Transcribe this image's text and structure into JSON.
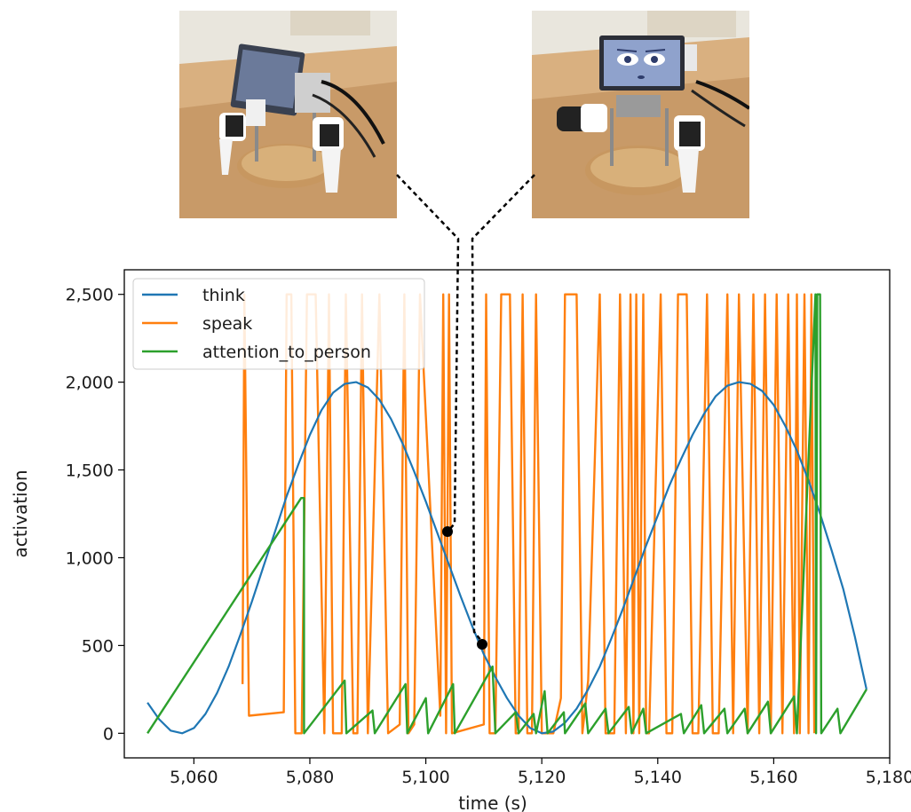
{
  "images": [
    {
      "name": "robot-photo-thinking",
      "screen_face": "dim"
    },
    {
      "name": "robot-photo-speaking",
      "screen_face": "bright"
    }
  ],
  "chart_data": {
    "type": "line",
    "xlabel": "time (s)",
    "ylabel": "activation",
    "xlim": [
      5048,
      5180
    ],
    "ylim": [
      -140,
      2640
    ],
    "xticks": [
      5060,
      5080,
      5100,
      5120,
      5140,
      5160,
      5180
    ],
    "xtick_labels": [
      "5,060",
      "5,080",
      "5,100",
      "5,120",
      "5,140",
      "5,160",
      "5,180"
    ],
    "yticks": [
      0,
      500,
      1000,
      1500,
      2000,
      2500
    ],
    "ytick_labels": [
      "0",
      "500",
      "1,000",
      "1,500",
      "2,000",
      "2,500"
    ],
    "grid": false,
    "legend": "top-left",
    "series": [
      {
        "name": "think",
        "color": "#1f77b4",
        "x": [
          5052,
          5054,
          5056,
          5058,
          5060,
          5062,
          5064,
          5066,
          5068,
          5070,
          5072,
          5074,
          5076,
          5078,
          5080,
          5082,
          5084,
          5086,
          5088,
          5090,
          5092,
          5094,
          5096,
          5098,
          5100,
          5102,
          5104,
          5106,
          5108,
          5110,
          5112,
          5114,
          5116,
          5118,
          5120,
          5122,
          5124,
          5126,
          5128,
          5130,
          5132,
          5134,
          5136,
          5138,
          5140,
          5142,
          5144,
          5146,
          5148,
          5150,
          5152,
          5154,
          5156,
          5158,
          5160,
          5162,
          5164,
          5166,
          5168,
          5170,
          5172,
          5174,
          5176
        ],
        "y": [
          175,
          80,
          15,
          0,
          30,
          110,
          230,
          380,
          560,
          750,
          950,
          1150,
          1350,
          1530,
          1700,
          1840,
          1940,
          1990,
          2000,
          1970,
          1900,
          1790,
          1650,
          1490,
          1320,
          1140,
          960,
          780,
          610,
          450,
          320,
          200,
          100,
          30,
          0,
          10,
          60,
          140,
          250,
          380,
          540,
          710,
          890,
          1070,
          1240,
          1410,
          1560,
          1700,
          1820,
          1920,
          1980,
          2000,
          1990,
          1950,
          1870,
          1750,
          1610,
          1440,
          1250,
          1040,
          820,
          550,
          250
        ]
      },
      {
        "name": "speak",
        "color": "#ff7f0e",
        "x": [
          5068.4,
          5068.7,
          5069.5,
          5075.5,
          5076.0,
          5076.8,
          5077.5,
          5078.6,
          5079.5,
          5081.0,
          5082.5,
          5083.3,
          5084.0,
          5085.5,
          5086.2,
          5087.5,
          5088.2,
          5089.0,
          5090.0,
          5092.0,
          5093.5,
          5095.5,
          5096.3,
          5097.0,
          5098.0,
          5099.0,
          5102.5,
          5103.0,
          5103.5,
          5104.0,
          5104.5,
          5110.0,
          5110.4,
          5111.0,
          5112.0,
          5113.0,
          5114.5,
          5115.5,
          5116.0,
          5116.7,
          5117.5,
          5118.3,
          5119.0,
          5120.0,
          5122.0,
          5123.3,
          5124.0,
          5126.0,
          5127.0,
          5128.0,
          5130.0,
          5131.0,
          5132.5,
          5133.5,
          5134.5,
          5135.3,
          5135.8,
          5136.3,
          5136.8,
          5137.5,
          5138.0,
          5138.5,
          5140.5,
          5141.5,
          5142.5,
          5143.5,
          5145.0,
          5146.0,
          5147.0,
          5148.5,
          5149.5,
          5150.5,
          5152.0,
          5153.0,
          5154.0,
          5155.5,
          5156.5,
          5157.5,
          5158.5,
          5159.5,
          5160.5,
          5161.5,
          5162.5,
          5163.5,
          5164.0,
          5164.5,
          5165.3,
          5166.0,
          5166.5,
          5167.0
        ],
        "y": [
          280,
          2500,
          100,
          120,
          2500,
          2500,
          0,
          0,
          2500,
          2500,
          0,
          2500,
          0,
          0,
          2500,
          0,
          0,
          2500,
          0,
          2500,
          0,
          50,
          2500,
          0,
          50,
          2500,
          100,
          2500,
          0,
          2500,
          0,
          50,
          2500,
          0,
          0,
          2500,
          2500,
          0,
          0,
          2500,
          0,
          0,
          2500,
          0,
          0,
          200,
          2500,
          2500,
          0,
          300,
          2500,
          0,
          0,
          2500,
          0,
          2500,
          0,
          2500,
          0,
          2500,
          0,
          0,
          2500,
          0,
          0,
          2500,
          2500,
          0,
          0,
          2500,
          0,
          0,
          2500,
          0,
          2500,
          0,
          2500,
          0,
          2500,
          0,
          2500,
          0,
          2500,
          0,
          2500,
          0,
          2500,
          0,
          2500,
          0
        ]
      },
      {
        "name": "attention_to_person",
        "color": "#2ca02c",
        "x": [
          5052,
          5078.5,
          5079,
          5079,
          5086,
          5086.3,
          5090.8,
          5091.2,
          5096.5,
          5096.8,
          5100,
          5100.4,
          5104.7,
          5105,
          5111.5,
          5112,
          5115.5,
          5116,
          5118.6,
          5119,
          5120.5,
          5121,
          5123.8,
          5124,
          5127.5,
          5128,
          5131,
          5131.5,
          5135,
          5135.5,
          5137.5,
          5138,
          5144,
          5144.5,
          5147.5,
          5148,
          5151.5,
          5152,
          5155,
          5155.5,
          5159,
          5159.5,
          5163.5,
          5164,
          5167.2,
          5167.3,
          5167.5,
          5168.0,
          5168.2,
          5171,
          5171.5,
          5176
        ],
        "y": [
          0,
          1340,
          1340,
          0,
          300,
          0,
          130,
          0,
          280,
          0,
          200,
          0,
          280,
          0,
          380,
          0,
          120,
          0,
          110,
          0,
          240,
          0,
          120,
          0,
          170,
          0,
          140,
          0,
          150,
          0,
          140,
          0,
          110,
          0,
          160,
          0,
          140,
          0,
          140,
          0,
          180,
          0,
          210,
          0,
          2500,
          0,
          2500,
          2500,
          0,
          140,
          0,
          250
        ]
      }
    ]
  }
}
